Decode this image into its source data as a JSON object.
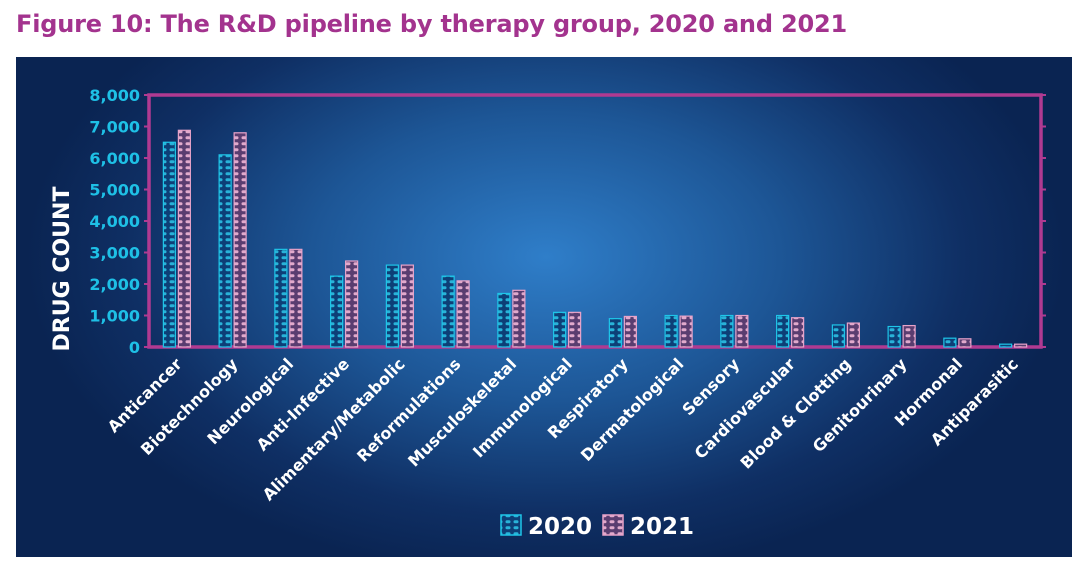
{
  "figure": {
    "title": "Figure 10: The R&D pipeline by therapy group, 2020 and 2021"
  },
  "colors": {
    "frame": "#b03a91",
    "tick_label": "#1ec0e6",
    "text": "#ffffff",
    "bar_2020": "#1ec6e8",
    "bar_2021": "#e8a3c9"
  },
  "chart_data": {
    "type": "bar",
    "ylabel": "DRUG COUNT",
    "xlabel": "",
    "ylim": [
      0,
      8000
    ],
    "yticks": [
      0,
      1000,
      2000,
      3000,
      4000,
      5000,
      6000,
      7000,
      8000
    ],
    "ytick_labels": [
      "0",
      "1,000",
      "2,000",
      "3,000",
      "4,000",
      "5,000",
      "6,000",
      "7,000",
      "8,000"
    ],
    "grid": false,
    "legend_position": "bottom",
    "categories": [
      "Anticancer",
      "Biotechnology",
      "Neurological",
      "Anti-Infective",
      "Alimentary/Metabolic",
      "Reformulations",
      "Musculoskeletal",
      "Immunological",
      "Respiratory",
      "Dermatological",
      "Sensory",
      "Cardiovascular",
      "Blood & Clotting",
      "Genitourinary",
      "Hormonal",
      "Antiparasitic"
    ],
    "series": [
      {
        "name": "2020",
        "values": [
          6500,
          6100,
          3100,
          2250,
          2600,
          2250,
          1700,
          1100,
          900,
          1000,
          1000,
          1000,
          700,
          650,
          280,
          90
        ]
      },
      {
        "name": "2021",
        "values": [
          6880,
          6800,
          3100,
          2730,
          2600,
          2100,
          1800,
          1100,
          970,
          980,
          1000,
          930,
          760,
          680,
          260,
          90
        ]
      }
    ]
  }
}
